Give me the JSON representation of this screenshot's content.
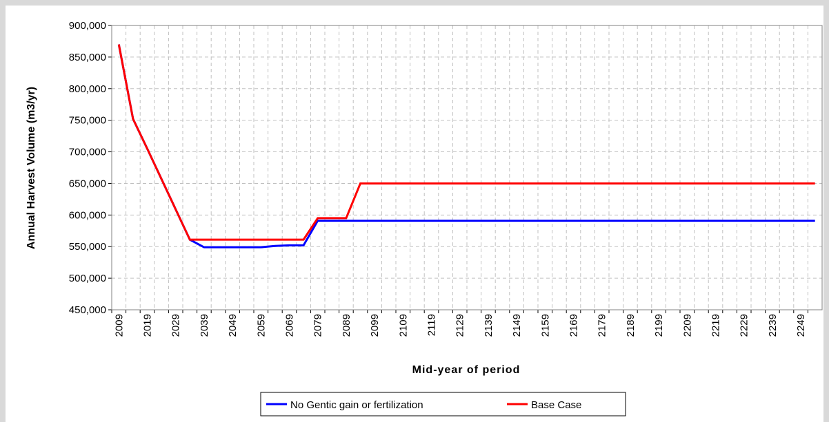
{
  "chart_data": {
    "type": "line",
    "ylabel": "Annual Harvest Volume (m3/yr)",
    "xlabel": "Mid-year of period",
    "categories": [
      "2009",
      null,
      "2019",
      null,
      "2029",
      null,
      "2039",
      null,
      "2049",
      null,
      "2059",
      null,
      "2069",
      null,
      "2079",
      null,
      "2089",
      null,
      "2099",
      null,
      "2109",
      null,
      "2119",
      null,
      "2129",
      null,
      "2139",
      null,
      "2149",
      null,
      "2159",
      null,
      "2169",
      null,
      "2179",
      null,
      "2189",
      null,
      "2199",
      null,
      "2209",
      null,
      "2219",
      null,
      "2229",
      null,
      "2239",
      null,
      "2249",
      null
    ],
    "series": [
      {
        "name": "No Gentic gain or fertilization",
        "color": "#0000ff",
        "values": [
          870000,
          752000,
          705000,
          657000,
          609000,
          561000,
          549000,
          549000,
          549000,
          549000,
          549000,
          551000,
          552000,
          552000,
          591000,
          591000,
          591000,
          591000,
          591000,
          591000,
          591000,
          591000,
          591000,
          591000,
          591000,
          591000,
          591000,
          591000,
          591000,
          591000,
          591000,
          591000,
          591000,
          591000,
          591000,
          591000,
          591000,
          591000,
          591000,
          591000,
          591000,
          591000,
          591000,
          591000,
          591000,
          591000,
          591000,
          591000,
          591000,
          591000
        ]
      },
      {
        "name": "Base Case",
        "color": "#ff0000",
        "values": [
          870000,
          752000,
          705000,
          657000,
          609000,
          561000,
          561000,
          561000,
          561000,
          561000,
          561000,
          561000,
          561000,
          561000,
          595000,
          595000,
          595000,
          650000,
          650000,
          650000,
          650000,
          650000,
          650000,
          650000,
          650000,
          650000,
          650000,
          650000,
          650000,
          650000,
          650000,
          650000,
          650000,
          650000,
          650000,
          650000,
          650000,
          650000,
          650000,
          650000,
          650000,
          650000,
          650000,
          650000,
          650000,
          650000,
          650000,
          650000,
          650000,
          650000
        ]
      }
    ],
    "ylim": [
      450000,
      900000
    ],
    "yticks": [
      {
        "value": 450000,
        "label": "450,000"
      },
      {
        "value": 500000,
        "label": "500,000"
      },
      {
        "value": 550000,
        "label": "550,000"
      },
      {
        "value": 600000,
        "label": "600,000"
      },
      {
        "value": 650000,
        "label": "650,000"
      },
      {
        "value": 700000,
        "label": "700,000"
      },
      {
        "value": 750000,
        "label": "750,000"
      },
      {
        "value": 800000,
        "label": "800,000"
      },
      {
        "value": 850000,
        "label": "850,000"
      },
      {
        "value": 900000,
        "label": "900,000"
      }
    ],
    "grid": true,
    "legend": "bottom"
  }
}
